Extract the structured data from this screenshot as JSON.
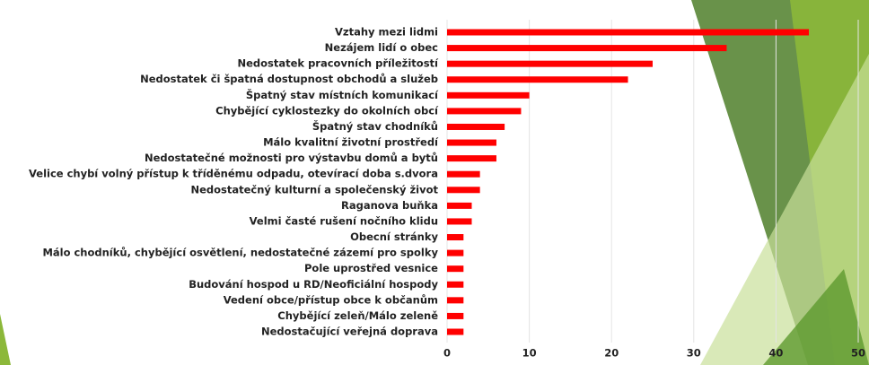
{
  "chart_data": {
    "type": "bar",
    "orientation": "horizontal",
    "categories": [
      "Vztahy mezi lidmi",
      "Nezájem lidí o obec",
      "Nedostatek pracovních příležitostí",
      "Nedostatek či špatná dostupnost obchodů a služeb",
      "Špatný stav místních komunikací",
      "Chybějící cyklostezky do okolních obcí",
      "Špatný stav chodníků",
      "Málo kvalitní životní prostředí",
      "Nedostatečné možnosti pro výstavbu domů a bytů",
      "Velice chybí volný přístup k tříděnému odpadu, otevírací doba s.dvora",
      "Nedostatečný kulturní a společenský život",
      "Raganova buňka",
      "Velmi časté rušení nočního klidu",
      "Obecní stránky",
      "Málo chodníků, chybějící osvětlení, nedostatečné zázemí pro spolky",
      "Pole uprostřed vesnice",
      "Budování hospod u RD/Neoficiální hospody",
      "Vedení obce/přístup obce k občanům",
      "Chybějící zeleň/Málo zeleně",
      "Nedostačující veřejná doprava"
    ],
    "values": [
      44,
      34,
      25,
      22,
      10,
      9,
      7,
      6,
      6,
      4,
      4,
      3,
      3,
      2,
      2,
      2,
      2,
      2,
      2,
      2
    ],
    "color": "#ff0000",
    "xlim": [
      0,
      50
    ],
    "xticks": [
      0,
      10,
      20,
      30,
      40,
      50
    ],
    "grid": true
  }
}
